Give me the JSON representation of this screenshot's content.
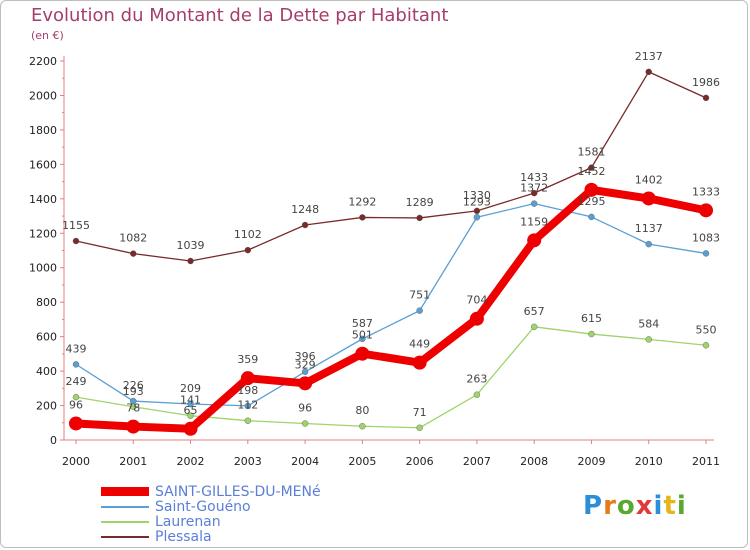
{
  "title": "Evolution du Montant de la Dette par Habitant",
  "subtitle": "(en €)",
  "logo": {
    "text": "Proxiti",
    "colors": [
      "#2a8fd6",
      "#e57c1b",
      "#5aa832",
      "#e23a3a",
      "#2a8fd6",
      "#e5b51b",
      "#5aa832"
    ]
  },
  "chart_data": {
    "type": "line",
    "title": "Evolution du Montant de la Dette par Habitant",
    "subtitle": "(en €)",
    "x": [
      "2000",
      "2001",
      "2002",
      "2003",
      "2004",
      "2005",
      "2006",
      "2007",
      "2008",
      "2009",
      "2010",
      "2011"
    ],
    "ylim": [
      0,
      2200
    ],
    "yticks": [
      "0",
      "200",
      "400",
      "600",
      "800",
      "1000",
      "1200",
      "1400",
      "1600",
      "1800",
      "2000",
      "2200"
    ],
    "grid": false,
    "legend": "bottom-left",
    "series": [
      {
        "name": "Plessala",
        "color": "#7a2a2a",
        "values": [
          1155,
          1082,
          1039,
          1102,
          1248,
          1292,
          1289,
          1330,
          1433,
          1581,
          2137,
          1986
        ]
      },
      {
        "name": "Saint-Gouéno",
        "color": "#5a9fd4",
        "values": [
          439,
          226,
          209,
          198,
          396,
          587,
          751,
          1293,
          1372,
          1295,
          1137,
          1083
        ]
      },
      {
        "name": "Laurenan",
        "color": "#9ed46a",
        "values": [
          249,
          193,
          141,
          112,
          96,
          80,
          71,
          263,
          657,
          615,
          584,
          550
        ]
      },
      {
        "name": "SAINT-GILLES-DU-MENé",
        "color": "#ee0000",
        "values": [
          96,
          78,
          65,
          359,
          329,
          501,
          449,
          704,
          1159,
          1452,
          1402,
          1333
        ]
      }
    ],
    "labels": {
      "Plessala": [
        "1155",
        "1082",
        "1039",
        "1102",
        "1248",
        "1292",
        "1289",
        "1330",
        "1433",
        "1581",
        "2137",
        "1986"
      ],
      "Saint-Gouéno": [
        "439",
        "226",
        "209",
        "198",
        "396",
        "587",
        "751",
        "1293",
        "1372",
        "1295",
        "1137",
        "1083"
      ],
      "Laurenan": [
        "249",
        "193",
        "141",
        "112",
        "96",
        "80",
        "71",
        "263",
        "657",
        "615",
        "584",
        "550"
      ],
      "SAINT-GILLES-DU-MENé": [
        "96",
        "78",
        "65",
        "359",
        "329",
        "501",
        "449",
        "704",
        "1159",
        "1452",
        "1402",
        "1333"
      ]
    }
  },
  "legend": [
    {
      "name": "SAINT-GILLES-DU-MENé",
      "color": "#ee0000"
    },
    {
      "name": "Saint-Gouéno",
      "color": "#5a9fd4"
    },
    {
      "name": "Laurenan",
      "color": "#9ed46a"
    },
    {
      "name": "Plessala",
      "color": "#7a2a2a"
    }
  ]
}
